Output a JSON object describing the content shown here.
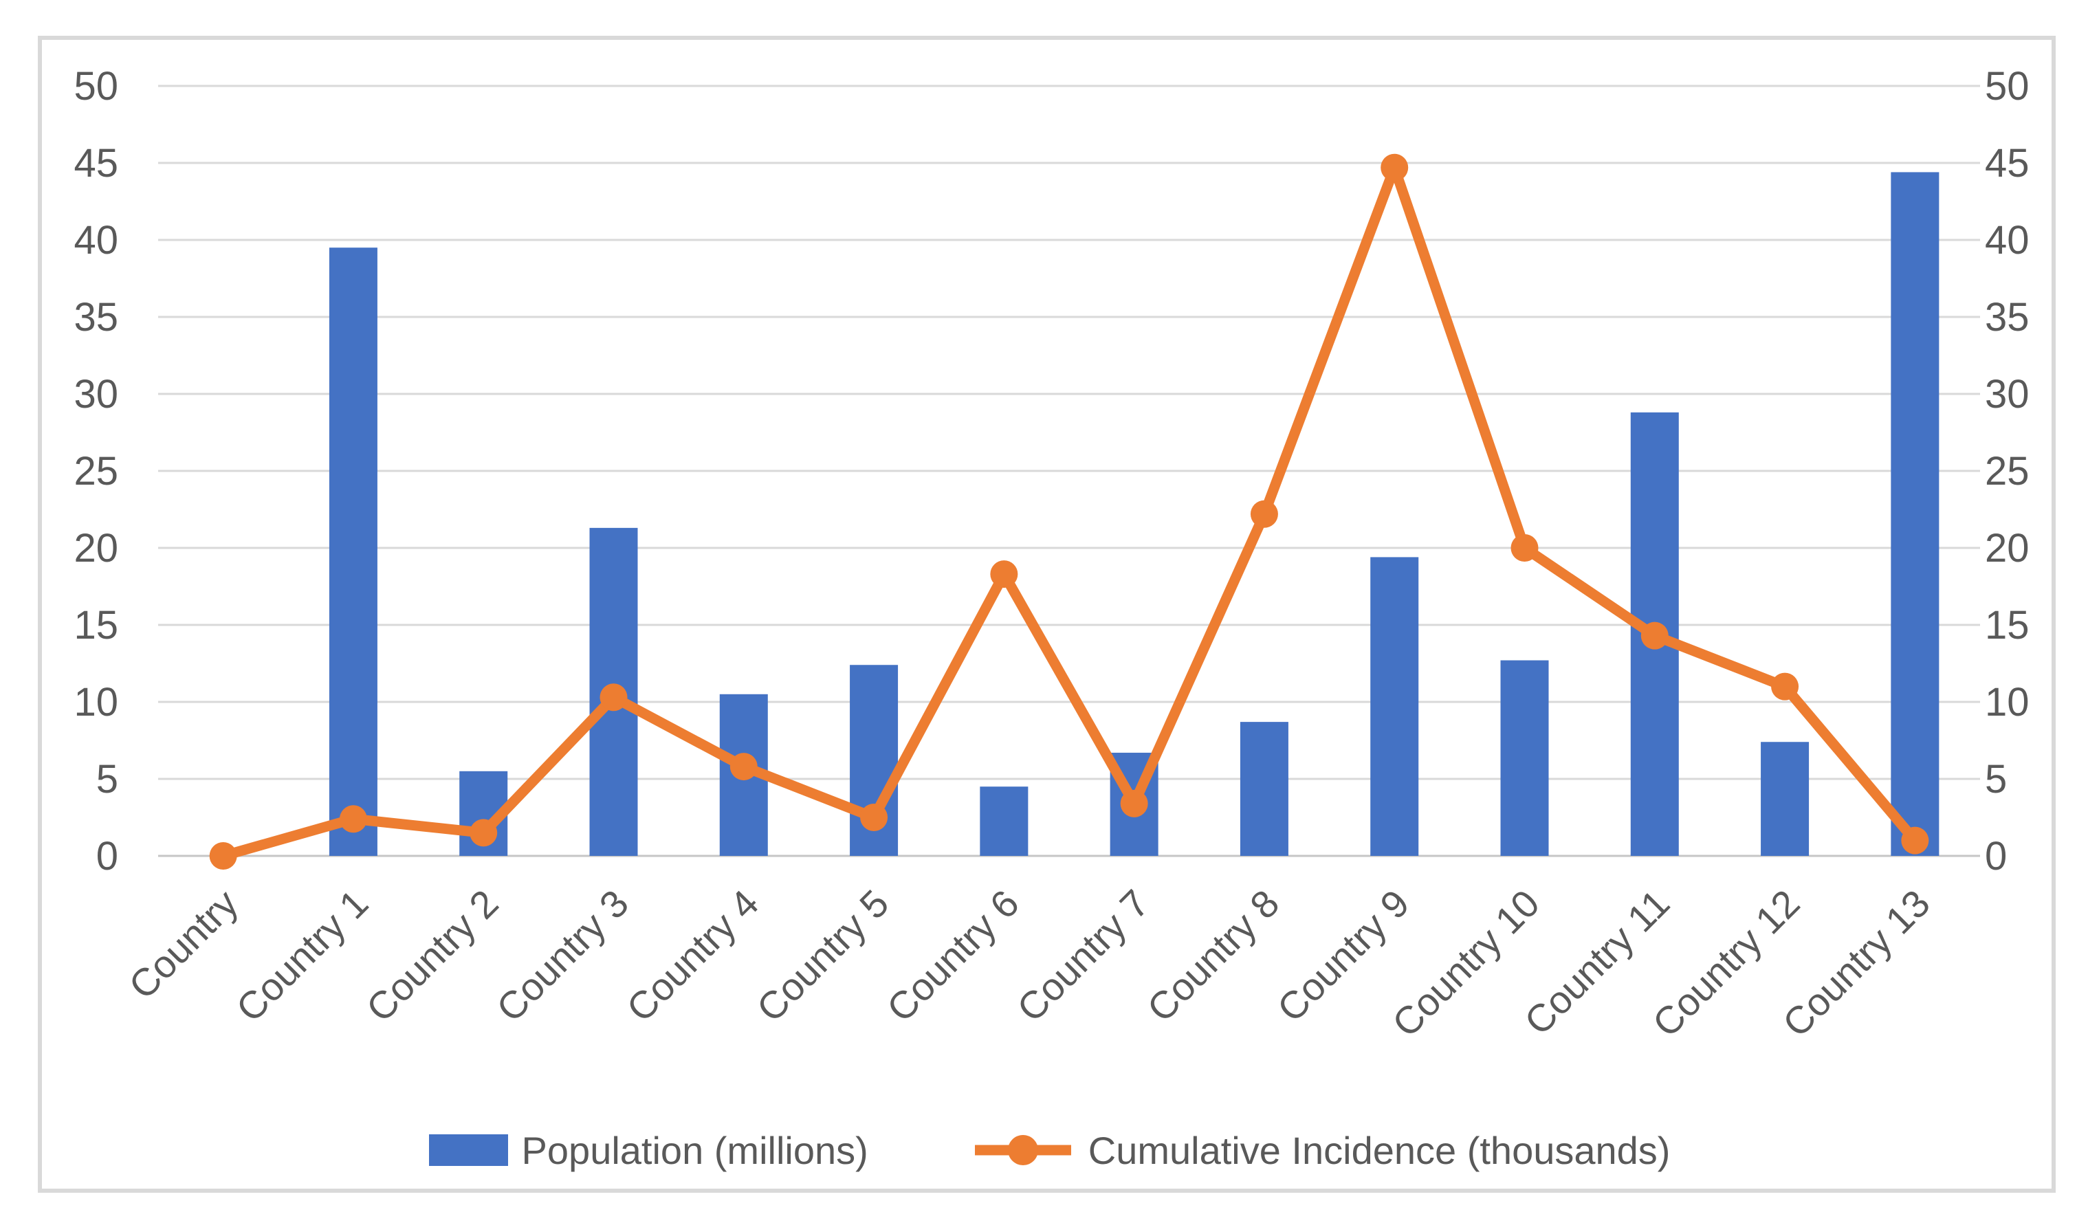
{
  "chart_data": {
    "type": "combo",
    "title": "",
    "categories": [
      "Country",
      "Country 1",
      "Country 2",
      "Country 3",
      "Country 4",
      "Country 5",
      "Country 6",
      "Country 7",
      "Country 8",
      "Country 9",
      "Country 10",
      "Country 11",
      "Country 12",
      "Country 13"
    ],
    "series": [
      {
        "name": "Population (millions)",
        "type": "bar",
        "color": "#4472C4",
        "values": [
          0,
          39.5,
          5.5,
          21.3,
          10.5,
          12.4,
          4.5,
          6.7,
          8.7,
          19.4,
          12.7,
          28.8,
          7.4,
          44.4
        ]
      },
      {
        "name": "Cumulative Incidence (thousands)",
        "type": "line",
        "color": "#ED7D31",
        "values": [
          0,
          2.4,
          1.5,
          10.3,
          5.8,
          2.5,
          18.3,
          3.4,
          22.2,
          44.7,
          20.0,
          14.3,
          11.0,
          1.0
        ]
      }
    ],
    "y_axis_left": {
      "min": 0,
      "max": 50,
      "step": 5,
      "ticks": [
        0,
        5,
        10,
        15,
        20,
        25,
        30,
        35,
        40,
        45,
        50
      ]
    },
    "y_axis_right": {
      "min": 0,
      "max": 50,
      "step": 5,
      "ticks": [
        0,
        5,
        10,
        15,
        20,
        25,
        30,
        35,
        40,
        45,
        50
      ]
    },
    "xlabel": "",
    "ylabel": "",
    "grid": true,
    "legend_position": "bottom",
    "colors": {
      "grid_line": "#D9D9D9",
      "zero_line": "#C6C6C6",
      "axis_text": "#595959",
      "frame_border": "#D9D9D9",
      "background": "#FFFFFF"
    }
  }
}
